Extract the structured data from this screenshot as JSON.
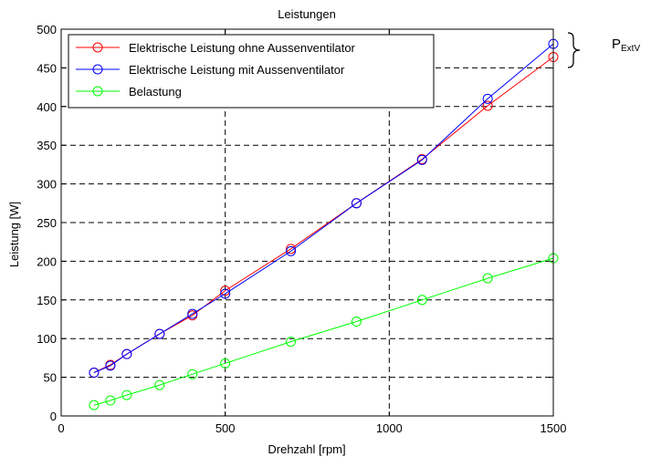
{
  "annotation": {
    "main": "P",
    "sub": "ExtV"
  },
  "chart_data": {
    "type": "line",
    "title": "Leistungen",
    "xlabel": "Drehzahl [rpm]",
    "ylabel": "Leistung [W]",
    "xlim": [
      0,
      1500
    ],
    "ylim": [
      0,
      500
    ],
    "xticks": [
      0,
      500,
      1000,
      1500
    ],
    "yticks": [
      0,
      50,
      100,
      150,
      200,
      250,
      300,
      350,
      400,
      450,
      500
    ],
    "grid": true,
    "legend_position": "top-left",
    "series": [
      {
        "name": "Elektrische Leistung ohne Aussenventilator",
        "color": "#ff0000",
        "x": [
          100,
          150,
          200,
          300,
          400,
          500,
          700,
          900,
          1100,
          1300,
          1500
        ],
        "y": [
          56,
          66,
          80,
          106,
          130,
          162,
          216,
          275,
          332,
          401,
          464
        ]
      },
      {
        "name": "Elektrische Leistung mit Aussenventilator",
        "color": "#0000ff",
        "x": [
          100,
          150,
          200,
          300,
          400,
          500,
          700,
          900,
          1100,
          1300,
          1500
        ],
        "y": [
          56,
          65,
          80,
          106,
          132,
          158,
          213,
          275,
          331,
          410,
          481
        ]
      },
      {
        "name": "Belastung",
        "color": "#00ff00",
        "x": [
          100,
          150,
          200,
          300,
          400,
          500,
          700,
          900,
          1100,
          1300,
          1500
        ],
        "y": [
          14,
          20,
          27,
          40,
          54,
          68,
          96,
          122,
          150,
          178,
          204
        ]
      }
    ]
  }
}
